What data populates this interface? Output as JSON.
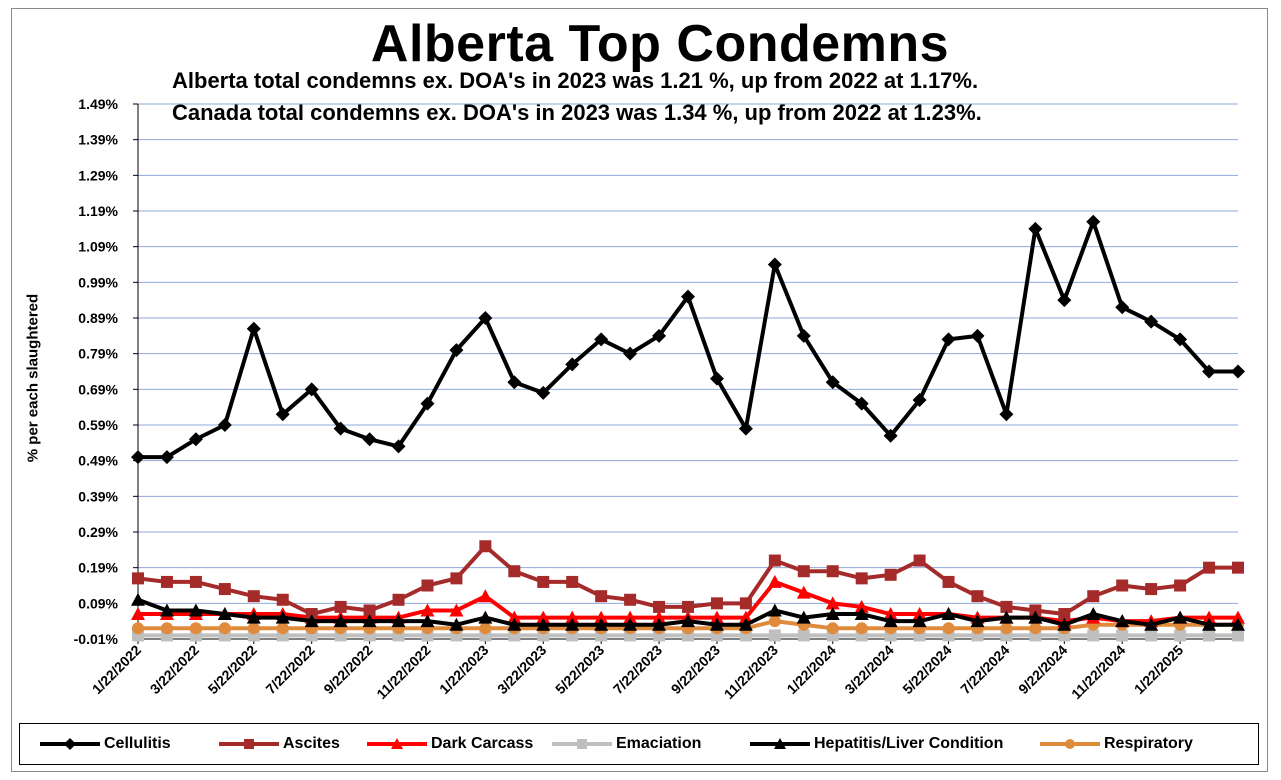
{
  "chart_data": {
    "type": "line",
    "title": "Alberta Top Condemns",
    "subtitle_lines": [
      "Alberta total condemns ex. DOA's in 2023 was 1.21 %, up from 2022 at 1.17%.",
      "Canada total condemns ex. DOA's in 2023 was 1.34 %, up from 2022 at 1.23%."
    ],
    "xlabel": "",
    "ylabel": "% per each slaughtered",
    "ylim": [
      -0.01,
      1.49
    ],
    "yticks": [
      "1.49%",
      "1.39%",
      "1.29%",
      "1.19%",
      "1.09%",
      "0.99%",
      "0.89%",
      "0.79%",
      "0.69%",
      "0.59%",
      "0.49%",
      "0.39%",
      "0.29%",
      "0.19%",
      "0.09%",
      "-0.01%"
    ],
    "ytick_values": [
      1.49,
      1.39,
      1.29,
      1.19,
      1.09,
      0.99,
      0.89,
      0.79,
      0.69,
      0.59,
      0.49,
      0.39,
      0.29,
      0.19,
      0.09,
      -0.01
    ],
    "x_tick_labels": [
      "1/22/2022",
      "3/22/2022",
      "5/22/2022",
      "7/22/2022",
      "9/22/2022",
      "11/22/2022",
      "1/22/2023",
      "3/22/2023",
      "5/22/2023",
      "7/22/2023",
      "9/22/2023",
      "11/22/2023",
      "1/22/2024",
      "3/22/2024",
      "5/22/2024",
      "7/22/2024",
      "9/22/2024",
      "11/22/2024",
      "1/22/2025"
    ],
    "grid": "horizontal",
    "legend_position": "bottom",
    "x": [
      "1/22/2022",
      "2/22/2022",
      "3/22/2022",
      "4/22/2022",
      "5/22/2022",
      "6/22/2022",
      "7/22/2022",
      "8/22/2022",
      "9/22/2022",
      "10/22/2022",
      "11/22/2022",
      "12/22/2022",
      "1/22/2023",
      "2/22/2023",
      "3/22/2023",
      "4/22/2023",
      "5/22/2023",
      "6/22/2023",
      "7/22/2023",
      "8/22/2023",
      "9/22/2023",
      "10/22/2023",
      "11/22/2023",
      "12/22/2023",
      "1/22/2024",
      "2/22/2024",
      "3/22/2024",
      "4/22/2024",
      "5/22/2024",
      "6/22/2024",
      "7/22/2024",
      "8/22/2024",
      "9/22/2024",
      "10/22/2024",
      "11/22/2024",
      "12/22/2024",
      "1/22/2025",
      "2/22/2025",
      "3/22/2025"
    ],
    "series": [
      {
        "name": "Cellulitis",
        "color": "#000000",
        "marker": "diamond",
        "values": [
          0.5,
          0.5,
          0.55,
          0.59,
          0.86,
          0.62,
          0.69,
          0.58,
          0.55,
          0.53,
          0.65,
          0.8,
          0.89,
          0.71,
          0.68,
          0.76,
          0.83,
          0.79,
          0.84,
          0.95,
          0.72,
          0.58,
          1.04,
          0.84,
          0.71,
          0.65,
          0.56,
          0.66,
          0.83,
          0.84,
          0.62,
          1.14,
          0.94,
          1.16,
          0.92,
          0.88,
          0.83,
          0.74,
          0.74
        ]
      },
      {
        "name": "Ascites",
        "color": "#A52A2A",
        "marker": "square",
        "values": [
          0.16,
          0.15,
          0.15,
          0.13,
          0.11,
          0.1,
          0.06,
          0.08,
          0.07,
          0.1,
          0.14,
          0.16,
          0.25,
          0.18,
          0.15,
          0.15,
          0.11,
          0.1,
          0.08,
          0.08,
          0.09,
          0.09,
          0.21,
          0.18,
          0.18,
          0.16,
          0.17,
          0.21,
          0.15,
          0.11,
          0.08,
          0.07,
          0.06,
          0.11,
          0.14,
          0.13,
          0.14,
          0.19,
          0.19
        ]
      },
      {
        "name": "Dark Carcass",
        "color": "#FF0000",
        "marker": "triangle",
        "values": [
          0.06,
          0.06,
          0.06,
          0.06,
          0.06,
          0.06,
          0.05,
          0.05,
          0.05,
          0.05,
          0.07,
          0.07,
          0.11,
          0.05,
          0.05,
          0.05,
          0.05,
          0.05,
          0.05,
          0.05,
          0.05,
          0.05,
          0.15,
          0.12,
          0.09,
          0.08,
          0.06,
          0.06,
          0.06,
          0.05,
          0.05,
          0.05,
          0.04,
          0.05,
          0.04,
          0.04,
          0.05,
          0.05,
          0.05
        ]
      },
      {
        "name": "Emaciation",
        "color": "#BFBFBF",
        "marker": "square",
        "values": [
          0.0,
          0.0,
          0.0,
          0.0,
          0.0,
          0.0,
          0.0,
          0.0,
          0.0,
          0.0,
          0.0,
          0.0,
          0.0,
          0.0,
          0.0,
          0.0,
          0.0,
          0.0,
          0.0,
          0.0,
          0.0,
          0.0,
          0.0,
          0.0,
          0.0,
          0.0,
          0.0,
          0.0,
          0.0,
          0.0,
          0.0,
          0.0,
          0.0,
          0.0,
          0.0,
          0.0,
          0.0,
          0.0,
          0.0
        ]
      },
      {
        "name": "Hepatitis/Liver Condition",
        "color": "#000000",
        "marker": "triangle",
        "values": [
          0.1,
          0.07,
          0.07,
          0.06,
          0.05,
          0.05,
          0.04,
          0.04,
          0.04,
          0.04,
          0.04,
          0.03,
          0.05,
          0.03,
          0.03,
          0.03,
          0.03,
          0.03,
          0.03,
          0.04,
          0.03,
          0.03,
          0.07,
          0.05,
          0.06,
          0.06,
          0.04,
          0.04,
          0.06,
          0.04,
          0.05,
          0.05,
          0.03,
          0.06,
          0.04,
          0.03,
          0.05,
          0.03,
          0.03
        ]
      },
      {
        "name": "Respiratory",
        "color": "#E08A3C",
        "marker": "circle",
        "values": [
          0.02,
          0.02,
          0.02,
          0.02,
          0.02,
          0.02,
          0.02,
          0.02,
          0.02,
          0.02,
          0.02,
          0.02,
          0.02,
          0.02,
          0.02,
          0.02,
          0.02,
          0.02,
          0.02,
          0.02,
          0.02,
          0.02,
          0.04,
          0.03,
          0.02,
          0.02,
          0.02,
          0.02,
          0.02,
          0.02,
          0.02,
          0.02,
          0.02,
          0.03,
          0.03,
          0.03,
          0.03,
          0.03,
          0.03
        ]
      }
    ]
  }
}
